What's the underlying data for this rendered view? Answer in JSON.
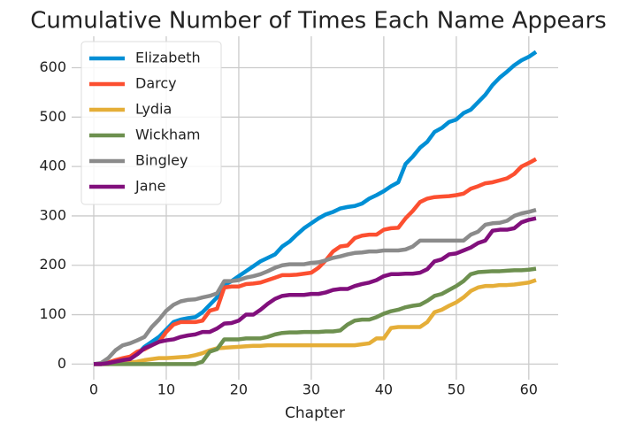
{
  "chart_data": {
    "type": "line",
    "title": "Cumulative Number of Times Each Name Appears",
    "xlabel": "Chapter",
    "x": [
      0,
      1,
      2,
      3,
      4,
      5,
      6,
      7,
      8,
      9,
      10,
      11,
      12,
      13,
      14,
      15,
      16,
      17,
      18,
      19,
      20,
      21,
      22,
      23,
      24,
      25,
      26,
      27,
      28,
      29,
      30,
      31,
      32,
      33,
      34,
      35,
      36,
      37,
      38,
      39,
      40,
      41,
      42,
      43,
      44,
      45,
      46,
      47,
      48,
      49,
      50,
      51,
      52,
      53,
      54,
      55,
      56,
      57,
      58,
      59,
      60,
      61
    ],
    "xlim": [
      -3.05,
      64.05
    ],
    "xticks": [
      0,
      10,
      20,
      30,
      40,
      50,
      60
    ],
    "ylim": [
      -31.6,
      663.6
    ],
    "yticks": [
      0,
      100,
      200,
      300,
      400,
      500,
      600
    ],
    "grid": true,
    "legend": "upper left",
    "series": [
      {
        "name": "Elizabeth",
        "color": "#008fd5",
        "values": [
          0,
          0,
          2,
          5,
          8,
          10,
          20,
          35,
          45,
          55,
          70,
          85,
          90,
          93,
          95,
          105,
          120,
          135,
          160,
          168,
          178,
          188,
          198,
          208,
          215,
          222,
          238,
          248,
          262,
          275,
          285,
          295,
          303,
          308,
          315,
          318,
          320,
          325,
          335,
          342,
          350,
          360,
          368,
          405,
          420,
          438,
          450,
          470,
          478,
          490,
          495,
          508,
          515,
          530,
          545,
          565,
          580,
          592,
          605,
          615,
          622,
          632
        ]
      },
      {
        "name": "Darcy",
        "color": "#fc4f30",
        "values": [
          0,
          0,
          3,
          8,
          12,
          15,
          25,
          30,
          38,
          45,
          65,
          80,
          85,
          85,
          85,
          88,
          108,
          112,
          155,
          157,
          157,
          162,
          163,
          165,
          170,
          175,
          180,
          180,
          181,
          183,
          185,
          195,
          210,
          228,
          238,
          240,
          255,
          260,
          262,
          262,
          272,
          275,
          276,
          295,
          310,
          328,
          335,
          338,
          339,
          340,
          342,
          345,
          355,
          360,
          366,
          368,
          372,
          376,
          385,
          400,
          407,
          415
        ]
      },
      {
        "name": "Lydia",
        "color": "#e5ae38",
        "values": [
          0,
          0,
          0,
          1,
          2,
          3,
          5,
          8,
          10,
          12,
          12,
          13,
          14,
          15,
          18,
          22,
          28,
          32,
          33,
          34,
          35,
          36,
          37,
          37,
          38,
          38,
          38,
          38,
          38,
          38,
          38,
          38,
          38,
          38,
          38,
          38,
          38,
          40,
          42,
          52,
          52,
          73,
          75,
          75,
          75,
          75,
          85,
          105,
          110,
          118,
          125,
          135,
          148,
          155,
          158,
          158,
          160,
          160,
          161,
          163,
          165,
          170
        ]
      },
      {
        "name": "Wickham",
        "color": "#6d904f",
        "values": [
          0,
          0,
          0,
          0,
          0,
          0,
          0,
          0,
          0,
          0,
          0,
          0,
          0,
          0,
          0,
          5,
          25,
          30,
          50,
          50,
          50,
          52,
          52,
          52,
          55,
          60,
          63,
          64,
          64,
          65,
          65,
          65,
          66,
          66,
          68,
          80,
          88,
          90,
          90,
          95,
          102,
          107,
          110,
          115,
          118,
          120,
          128,
          138,
          142,
          150,
          158,
          168,
          182,
          186,
          187,
          188,
          188,
          189,
          190,
          190,
          191,
          193
        ]
      },
      {
        "name": "Bingley",
        "color": "#8b8b8b",
        "values": [
          0,
          2,
          12,
          28,
          38,
          42,
          48,
          55,
          75,
          90,
          108,
          120,
          127,
          130,
          131,
          135,
          138,
          143,
          168,
          168,
          170,
          175,
          178,
          182,
          188,
          195,
          200,
          202,
          202,
          202,
          205,
          206,
          210,
          215,
          218,
          222,
          225,
          226,
          228,
          228,
          230,
          230,
          230,
          232,
          238,
          250,
          250,
          250,
          250,
          250,
          250,
          250,
          262,
          268,
          282,
          285,
          286,
          290,
          300,
          305,
          308,
          312
        ]
      },
      {
        "name": "Jane",
        "color": "#810f7c",
        "values": [
          0,
          0,
          2,
          5,
          8,
          10,
          20,
          32,
          38,
          45,
          48,
          50,
          55,
          58,
          60,
          65,
          65,
          72,
          82,
          83,
          88,
          100,
          100,
          110,
          122,
          132,
          138,
          140,
          140,
          140,
          142,
          142,
          145,
          150,
          152,
          152,
          158,
          162,
          165,
          170,
          178,
          182,
          182,
          183,
          183,
          185,
          192,
          208,
          212,
          222,
          224,
          230,
          236,
          245,
          250,
          270,
          272,
          272,
          275,
          287,
          292,
          295
        ]
      }
    ]
  }
}
